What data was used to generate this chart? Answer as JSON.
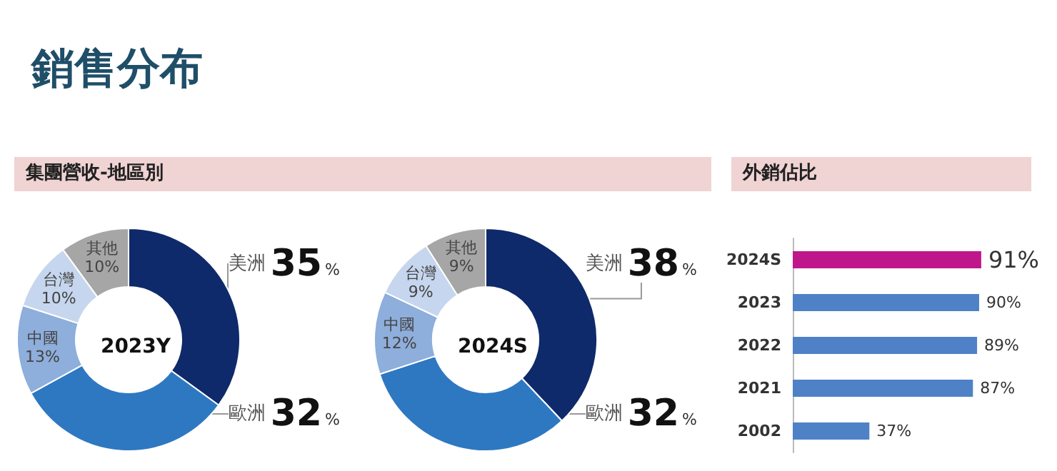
{
  "chart_data": [
    {
      "type": "donut",
      "title": "2023Y",
      "annotations": [
        "銷售分布",
        "集團營收-地區別"
      ],
      "categories": [
        "美洲",
        "歐洲",
        "中國",
        "台灣",
        "其他"
      ],
      "values": [
        35,
        32,
        13,
        10,
        10
      ],
      "value_labels": [
        "35%",
        "32%",
        "13%",
        "10%",
        "10%"
      ],
      "colors": [
        "#0e2a6a",
        "#2e78c2",
        "#8eaedb",
        "#c6d6ee",
        "#a6a6a6"
      ]
    },
    {
      "type": "donut",
      "title": "2024S",
      "categories": [
        "美洲",
        "歐洲",
        "中國",
        "台灣",
        "其他"
      ],
      "values": [
        38,
        32,
        12,
        9,
        9
      ],
      "value_labels": [
        "38%",
        "32%",
        "12%",
        "9%",
        "9%"
      ],
      "colors": [
        "#0e2a6a",
        "#2e78c2",
        "#8eaedb",
        "#c6d6ee",
        "#a6a6a6"
      ]
    },
    {
      "type": "bar",
      "orientation": "horizontal",
      "title": "外銷佔比",
      "categories": [
        "2024S",
        "2023",
        "2022",
        "2021",
        "2002"
      ],
      "values": [
        91,
        90,
        89,
        87,
        37
      ],
      "value_labels": [
        "91%",
        "90%",
        "89%",
        "87%",
        "37%"
      ],
      "colors": [
        "#c0168c",
        "#4f81c7",
        "#4f81c7",
        "#4f81c7",
        "#4f81c7"
      ]
    }
  ]
}
